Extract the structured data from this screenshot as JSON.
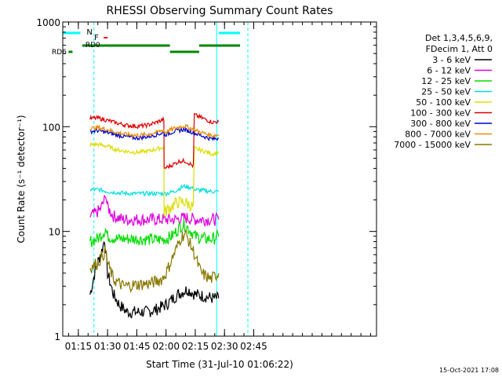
{
  "chart_data": {
    "type": "line",
    "title": "RHESSI Observing Summary Count Rates",
    "xlabel": "Start Time (31-Jul-10 01:06:22)",
    "ylabel": "Count Rate (s⁻¹ detector⁻¹)",
    "yscale": "log",
    "ylim": [
      1,
      1000
    ],
    "xlim_min": [
      7,
      168
    ],
    "x_ticks": [
      {
        "min": 15,
        "label": "01:15"
      },
      {
        "min": 30,
        "label": "01:30"
      },
      {
        "min": 45,
        "label": "01:45"
      },
      {
        "min": 60,
        "label": "02:00"
      },
      {
        "min": 75,
        "label": "02:15"
      },
      {
        "min": 90,
        "label": "02:30"
      },
      {
        "min": 105,
        "label": "02:45"
      }
    ],
    "y_ticks": [
      {
        "value": 1,
        "label": "1"
      },
      {
        "value": 10,
        "label": "10"
      },
      {
        "value": 100,
        "label": "100"
      },
      {
        "value": 1000,
        "label": "1000"
      }
    ],
    "legend_header": [
      "Det 1,3,4,5,6,9,",
      "FDecim 1, Att 0"
    ],
    "series": [
      {
        "name": "3 - 6 keV",
        "color": "#000000",
        "points": [
          [
            21,
            2.5
          ],
          [
            24,
            4.5
          ],
          [
            27,
            6.5
          ],
          [
            28.5,
            8.5
          ],
          [
            30,
            4
          ],
          [
            33,
            2.5
          ],
          [
            36,
            2
          ],
          [
            40,
            1.7
          ],
          [
            45,
            1.7
          ],
          [
            50,
            1.7
          ],
          [
            55,
            1.8
          ],
          [
            60,
            2
          ],
          [
            66,
            2.5
          ],
          [
            71,
            2.8
          ],
          [
            75,
            2.5
          ],
          [
            80,
            2.4
          ],
          [
            84,
            2.3
          ],
          [
            87,
            2.3
          ]
        ]
      },
      {
        "name": "6 - 12 keV",
        "color": "#dd00dd",
        "points": [
          [
            21,
            14
          ],
          [
            24,
            15
          ],
          [
            26,
            16
          ],
          [
            28,
            19
          ],
          [
            29,
            22
          ],
          [
            30,
            17
          ],
          [
            33,
            14
          ],
          [
            38,
            13
          ],
          [
            45,
            13
          ],
          [
            52,
            13
          ],
          [
            58,
            13
          ],
          [
            60,
            13
          ],
          [
            65,
            13
          ],
          [
            70,
            13.5
          ],
          [
            75,
            13
          ],
          [
            80,
            13
          ],
          [
            84,
            13
          ],
          [
            87,
            13
          ]
        ]
      },
      {
        "name": "12 - 25 keV",
        "color": "#00dd00",
        "points": [
          [
            21,
            8
          ],
          [
            25,
            8.5
          ],
          [
            29,
            10.5
          ],
          [
            30,
            9
          ],
          [
            35,
            8.5
          ],
          [
            45,
            8.5
          ],
          [
            55,
            8.3
          ],
          [
            60,
            8.5
          ],
          [
            63,
            9
          ],
          [
            68,
            11.5
          ],
          [
            70,
            11.5
          ],
          [
            75,
            9
          ],
          [
            80,
            8.5
          ],
          [
            84,
            8.5
          ],
          [
            87,
            9
          ]
        ]
      },
      {
        "name": "25 - 50 keV",
        "color": "#00dddd",
        "points": [
          [
            21,
            25
          ],
          [
            26,
            25
          ],
          [
            30,
            24
          ],
          [
            40,
            23
          ],
          [
            50,
            23
          ],
          [
            58,
            23
          ],
          [
            60,
            23
          ],
          [
            64,
            24
          ],
          [
            69,
            27
          ],
          [
            74,
            26
          ],
          [
            75,
            25
          ],
          [
            80,
            24.5
          ],
          [
            84,
            24
          ],
          [
            87,
            24
          ]
        ]
      },
      {
        "name": "50 - 100 keV",
        "color": "#dddd00",
        "points": [
          [
            21,
            67
          ],
          [
            25,
            68
          ],
          [
            30,
            65
          ],
          [
            35,
            60
          ],
          [
            40,
            58
          ],
          [
            45,
            57
          ],
          [
            50,
            58
          ],
          [
            55,
            61
          ],
          [
            58.9,
            64
          ],
          [
            59,
            15
          ],
          [
            62,
            17
          ],
          [
            66,
            19
          ],
          [
            70,
            19
          ],
          [
            74,
            17
          ],
          [
            74.5,
            62
          ],
          [
            80,
            58
          ],
          [
            84,
            55
          ],
          [
            87,
            57
          ]
        ]
      },
      {
        "name": "100 - 300 keV",
        "color": "#dd0000",
        "points": [
          [
            21,
            120
          ],
          [
            25,
            121
          ],
          [
            30,
            115
          ],
          [
            35,
            108
          ],
          [
            40,
            103
          ],
          [
            45,
            101
          ],
          [
            50,
            103
          ],
          [
            55,
            110
          ],
          [
            58.9,
            118
          ],
          [
            59,
            40
          ],
          [
            63,
            43
          ],
          [
            67,
            47
          ],
          [
            70,
            47
          ],
          [
            74,
            42
          ],
          [
            74.5,
            130
          ],
          [
            80,
            118
          ],
          [
            84,
            110
          ],
          [
            87,
            112
          ]
        ]
      },
      {
        "name": "300 - 800 keV",
        "color": "#0000cc",
        "points": [
          [
            21,
            90
          ],
          [
            25,
            92
          ],
          [
            30,
            88
          ],
          [
            35,
            83
          ],
          [
            40,
            80
          ],
          [
            45,
            78
          ],
          [
            50,
            80
          ],
          [
            55,
            84
          ],
          [
            58.9,
            88
          ],
          [
            59,
            83
          ],
          [
            64,
            90
          ],
          [
            69,
            94
          ],
          [
            74,
            88
          ],
          [
            74.5,
            87
          ],
          [
            80,
            80
          ],
          [
            84,
            76
          ],
          [
            87,
            78
          ]
        ]
      },
      {
        "name": "800 - 7000 keV",
        "color": "#ee8800",
        "points": [
          [
            21,
            97
          ],
          [
            25,
            98
          ],
          [
            30,
            94
          ],
          [
            35,
            88
          ],
          [
            40,
            84
          ],
          [
            45,
            83
          ],
          [
            50,
            84
          ],
          [
            55,
            88
          ],
          [
            58.9,
            94
          ],
          [
            59,
            88
          ],
          [
            64,
            96
          ],
          [
            69,
            102
          ],
          [
            74,
            95
          ],
          [
            74.5,
            93
          ],
          [
            80,
            86
          ],
          [
            84,
            82
          ],
          [
            87,
            84
          ]
        ]
      },
      {
        "name": "7000 - 15000 keV",
        "color": "#887700",
        "points": [
          [
            21,
            4.5
          ],
          [
            25,
            5
          ],
          [
            29,
            6.5
          ],
          [
            30,
            5
          ],
          [
            33,
            3.5
          ],
          [
            38,
            3
          ],
          [
            45,
            3.1
          ],
          [
            52,
            3.2
          ],
          [
            58,
            3.5
          ],
          [
            60,
            4
          ],
          [
            64,
            6
          ],
          [
            68,
            9
          ],
          [
            70,
            9.5
          ],
          [
            74,
            6.5
          ],
          [
            78,
            4
          ],
          [
            83,
            3.5
          ],
          [
            87,
            4
          ]
        ]
      }
    ],
    "annotations": {
      "n_label": "N",
      "f_label": "F",
      "rd0_label": "RD0",
      "rd6_label": "RD6",
      "n_segments": [
        [
          7,
          16
        ],
        [
          87,
          98
        ]
      ],
      "f_segment": [
        28,
        30
      ],
      "rd0_segments": [
        [
          17,
          62
        ],
        [
          77,
          98
        ]
      ],
      "rd0_dip": [
        62,
        77
      ],
      "rd6_segment": [
        10,
        12
      ],
      "cyan_solid_lines": [
        7,
        86
      ],
      "cyan_dashed_lines": [
        23,
        102
      ]
    },
    "timestamp": "15-Oct-2021 17:08"
  }
}
